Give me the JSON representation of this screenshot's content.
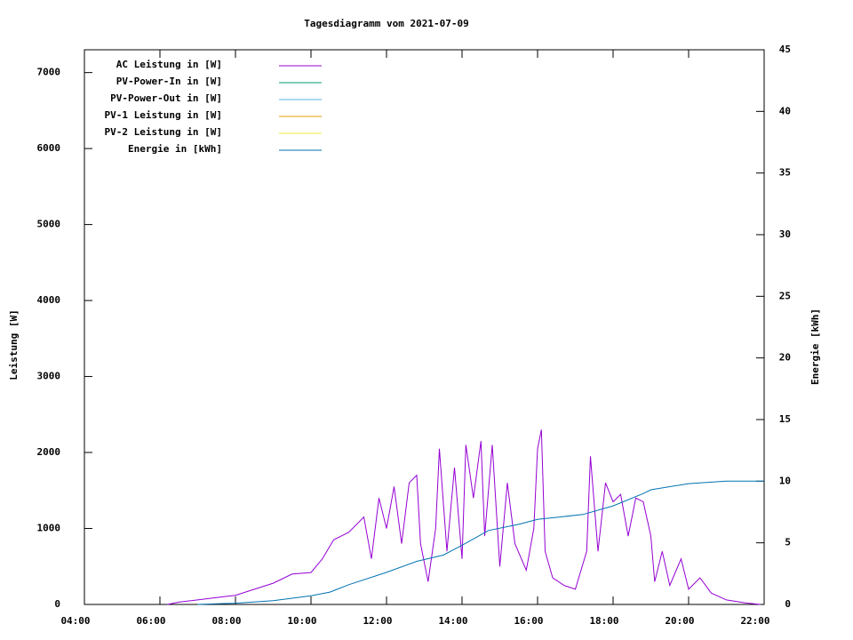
{
  "chart_data": {
    "type": "line",
    "title": "Tagesdiagramm vom 2021-07-09",
    "ylabel": "Leistung [W]",
    "y2label": "Energie [kWh]",
    "xlim": [
      4,
      22
    ],
    "xticks": [
      {
        "value": 4,
        "label": "04:00"
      },
      {
        "value": 6,
        "label": "06:00"
      },
      {
        "value": 8,
        "label": "08:00"
      },
      {
        "value": 10,
        "label": "10:00"
      },
      {
        "value": 12,
        "label": "12:00"
      },
      {
        "value": 14,
        "label": "14:00"
      },
      {
        "value": 16,
        "label": "16:00"
      },
      {
        "value": 18,
        "label": "18:00"
      },
      {
        "value": 20,
        "label": "20:00"
      },
      {
        "value": 22,
        "label": "22:00"
      }
    ],
    "ylim": [
      0,
      7300
    ],
    "yticks": [
      0,
      1000,
      2000,
      3000,
      4000,
      5000,
      6000,
      7000
    ],
    "y2lim": [
      0,
      45
    ],
    "y2ticks": [
      0,
      5,
      10,
      15,
      20,
      25,
      30,
      35,
      40,
      45
    ],
    "legend": "top-left",
    "series": [
      {
        "name": "AC Leistung in [W]",
        "color": "#9400d3",
        "x": [
          6.2,
          6.5,
          7,
          7.5,
          8,
          8.5,
          9,
          9.5,
          10,
          10.3,
          10.6,
          11,
          11.4,
          11.6,
          11.8,
          12,
          12.2,
          12.4,
          12.6,
          12.8,
          12.9,
          13.1,
          13.3,
          13.4,
          13.6,
          13.8,
          14,
          14.1,
          14.3,
          14.5,
          14.6,
          14.8,
          15,
          15.2,
          15.4,
          15.7,
          15.9,
          16,
          16.1,
          16.2,
          16.4,
          16.7,
          17,
          17.3,
          17.4,
          17.6,
          17.8,
          18,
          18.2,
          18.4,
          18.6,
          18.8,
          19,
          19.1,
          19.3,
          19.5,
          19.8,
          20,
          20.3,
          20.6,
          21,
          21.5,
          21.9
        ],
        "values": [
          0,
          30,
          60,
          90,
          120,
          200,
          280,
          400,
          420,
          600,
          850,
          950,
          1150,
          600,
          1400,
          1000,
          1550,
          800,
          1600,
          1700,
          800,
          300,
          1000,
          2050,
          700,
          1800,
          600,
          2100,
          1400,
          2150,
          900,
          2100,
          500,
          1600,
          800,
          450,
          1000,
          2050,
          2300,
          700,
          350,
          250,
          200,
          700,
          1950,
          700,
          1600,
          1350,
          1450,
          900,
          1400,
          1350,
          900,
          300,
          700,
          250,
          600,
          200,
          350,
          150,
          60,
          20,
          0
        ]
      },
      {
        "name": "PV-Power-In in [W]",
        "color": "#009e73",
        "x": [],
        "values": []
      },
      {
        "name": "PV-Power-Out in [W]",
        "color": "#56b4e9",
        "x": [],
        "values": []
      },
      {
        "name": "PV-1 Leistung in [W]",
        "color": "#e69f00",
        "x": [],
        "values": []
      },
      {
        "name": "PV-2 Leistung in [W]",
        "color": "#f0e442",
        "x": [],
        "values": []
      },
      {
        "name": "Energie in [kWh]",
        "color": "#0072b2",
        "axis": "y2",
        "x": [
          7,
          8,
          9,
          10,
          10.5,
          11,
          12,
          12.8,
          13.5,
          14,
          14.7,
          15.5,
          16,
          17.2,
          18,
          18.8,
          19,
          20,
          21,
          22
        ],
        "values": [
          0,
          0.1,
          0.3,
          0.7,
          1,
          1.6,
          2.6,
          3.5,
          4,
          4.8,
          6,
          6.5,
          6.9,
          7.3,
          8,
          9,
          9.3,
          9.8,
          10,
          10
        ]
      }
    ]
  }
}
